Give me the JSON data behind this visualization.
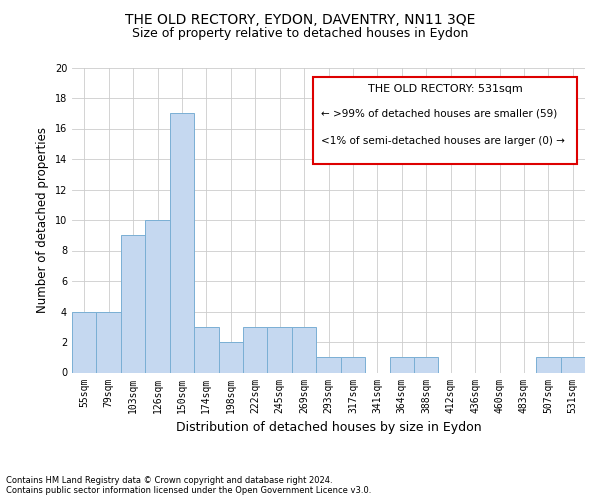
{
  "title": "THE OLD RECTORY, EYDON, DAVENTRY, NN11 3QE",
  "subtitle": "Size of property relative to detached houses in Eydon",
  "xlabel": "Distribution of detached houses by size in Eydon",
  "ylabel": "Number of detached properties",
  "categories": [
    "55sqm",
    "79sqm",
    "103sqm",
    "126sqm",
    "150sqm",
    "174sqm",
    "198sqm",
    "222sqm",
    "245sqm",
    "269sqm",
    "293sqm",
    "317sqm",
    "341sqm",
    "364sqm",
    "388sqm",
    "412sqm",
    "436sqm",
    "460sqm",
    "483sqm",
    "507sqm",
    "531sqm"
  ],
  "values": [
    4,
    4,
    9,
    10,
    17,
    3,
    2,
    3,
    3,
    3,
    1,
    1,
    0,
    1,
    1,
    0,
    0,
    0,
    0,
    1,
    1
  ],
  "bar_color": "#c5d8f0",
  "bar_edge_color": "#7aafd4",
  "annotation_title": "THE OLD RECTORY: 531sqm",
  "annotation_line1": "← >99% of detached houses are smaller (59)",
  "annotation_line2": "<1% of semi-detached houses are larger (0) →",
  "annotation_box_color": "#dd0000",
  "ylim": [
    0,
    20
  ],
  "yticks": [
    0,
    2,
    4,
    6,
    8,
    10,
    12,
    14,
    16,
    18,
    20
  ],
  "footer_line1": "Contains HM Land Registry data © Crown copyright and database right 2024.",
  "footer_line2": "Contains public sector information licensed under the Open Government Licence v3.0.",
  "grid_color": "#cccccc",
  "background_color": "#ffffff",
  "title_fontsize": 10,
  "subtitle_fontsize": 9,
  "ylabel_fontsize": 8.5,
  "xlabel_fontsize": 9,
  "tick_fontsize": 7,
  "annotation_title_fontsize": 8,
  "annotation_text_fontsize": 7.5,
  "footer_fontsize": 6
}
